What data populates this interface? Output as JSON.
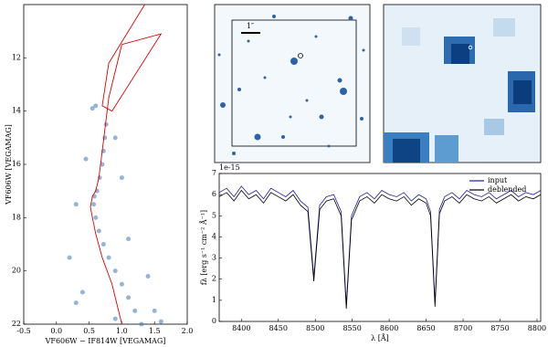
{
  "chart_data": [
    {
      "type": "scatter",
      "x_label": "VF606W − IF814W [VEGAMAG]",
      "y_label": "VF606W [VEGAMAG]",
      "xlim": [
        -0.5,
        2.0
      ],
      "xticks": [
        -0.5,
        {
          "value": 0.0,
          "label": "0.0"
        },
        0.5,
        {
          "value": 1.0,
          "label": "1.0"
        },
        1.5,
        {
          "value": 2.0,
          "label": "2.0"
        }
      ],
      "ylim": [
        22,
        10
      ],
      "yticks": [
        12,
        14,
        16,
        18,
        20,
        22
      ],
      "color": "#3a78b8",
      "x": [
        1.3,
        1.2,
        1.1,
        1.0,
        0.9,
        0.8,
        0.72,
        0.65,
        0.6,
        0.57,
        0.58,
        0.62,
        0.66,
        0.7,
        0.72,
        0.74,
        0.76,
        0.6,
        0.55,
        0.9,
        1.5,
        0.4,
        1.4,
        0.2,
        1.1,
        0.3,
        1.0,
        0.45,
        0.9,
        0.3,
        1.6
      ],
      "y": [
        22,
        21.5,
        21,
        20.5,
        20,
        19.5,
        19,
        18.5,
        18,
        17.5,
        17.2,
        17,
        16.5,
        16,
        15.5,
        15,
        14.5,
        13.8,
        13.9,
        21.8,
        21.5,
        20.8,
        20.2,
        19.5,
        18.8,
        17.5,
        16.5,
        15.8,
        15,
        21.2,
        21.9
      ],
      "isochrone": {
        "color": "#e00000",
        "x": [
          1.0,
          0.85,
          0.7,
          0.6,
          0.55,
          0.52,
          0.55,
          0.6,
          0.65,
          0.7,
          0.75,
          0.8,
          0.9,
          1.0,
          1.6,
          0.85,
          0.7,
          0.8,
          1.2,
          1.35
        ],
        "y": [
          22,
          20.5,
          19.5,
          18.6,
          18,
          17.6,
          17.2,
          17.0,
          16.5,
          15.5,
          14.5,
          13.5,
          12.5,
          11.5,
          11.1,
          14.0,
          13.8,
          12.2,
          10.6,
          10.0
        ]
      }
    },
    {
      "type": "line",
      "x_label": "λ [Å]",
      "y_label": "fλ [erg s⁻¹ cm⁻² Å⁻¹]",
      "y_multiplier": "1e-15",
      "xlim": [
        8370,
        8805
      ],
      "xticks": [
        8400,
        8450,
        8500,
        8550,
        8600,
        8650,
        8700,
        8750,
        8800
      ],
      "ylim": [
        0,
        7
      ],
      "yticks": [
        0,
        1,
        2,
        3,
        4,
        5,
        6,
        7
      ],
      "legend": "upper right",
      "x": [
        8370,
        8380,
        8390,
        8400,
        8410,
        8420,
        8430,
        8440,
        8450,
        8460,
        8470,
        8480,
        8490,
        8498,
        8506,
        8515,
        8525,
        8535,
        8542,
        8549,
        8560,
        8570,
        8580,
        8590,
        8600,
        8610,
        8620,
        8630,
        8640,
        8650,
        8656,
        8662,
        8668,
        8675,
        8685,
        8695,
        8705,
        8715,
        8725,
        8735,
        8745,
        8755,
        8765,
        8775,
        8785,
        8795,
        8805
      ],
      "series": [
        {
          "name": "input",
          "color": "#1c1ca8",
          "values": [
            6.1,
            6.3,
            5.9,
            6.4,
            6.0,
            6.2,
            5.8,
            6.3,
            6.1,
            5.9,
            6.2,
            5.7,
            5.4,
            2.1,
            5.5,
            5.9,
            6.0,
            5.2,
            0.8,
            5.0,
            5.9,
            6.1,
            5.8,
            6.2,
            6.0,
            5.9,
            6.1,
            5.7,
            6.0,
            5.8,
            5.2,
            0.9,
            5.3,
            5.9,
            6.1,
            5.8,
            6.2,
            6.0,
            5.9,
            6.1,
            5.8,
            6.0,
            6.2,
            5.9,
            6.1,
            6.0,
            6.2
          ]
        },
        {
          "name": "deblended",
          "color": "#000000",
          "values": [
            5.9,
            6.1,
            5.7,
            6.2,
            5.8,
            6.0,
            5.6,
            6.1,
            5.9,
            5.7,
            6.0,
            5.5,
            5.2,
            1.9,
            5.3,
            5.7,
            5.8,
            5.0,
            0.6,
            4.8,
            5.7,
            5.9,
            5.6,
            6.0,
            5.8,
            5.7,
            5.9,
            5.5,
            5.8,
            5.6,
            5.0,
            0.7,
            5.1,
            5.7,
            5.9,
            5.6,
            6.0,
            5.8,
            5.7,
            5.9,
            5.6,
            5.8,
            6.0,
            5.7,
            5.9,
            5.8,
            6.0
          ]
        }
      ]
    }
  ],
  "images": {
    "scale_label": "1″"
  }
}
